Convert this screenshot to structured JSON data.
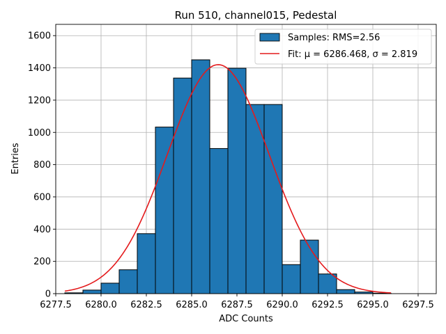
{
  "chart_data": {
    "type": "bar",
    "title": "Run 510, channel015, Pedestal",
    "xlabel": "ADC Counts",
    "ylabel": "Entries",
    "xlim": [
      6277.5,
      6298.5
    ],
    "ylim": [
      0,
      1670
    ],
    "xticks": [
      6277.5,
      6280.0,
      6282.5,
      6285.0,
      6287.5,
      6290.0,
      6292.5,
      6295.0,
      6297.5
    ],
    "xtick_labels": [
      "6277.5",
      "6280.0",
      "6282.5",
      "6285.0",
      "6287.5",
      "6290.0",
      "6292.5",
      "6295.0",
      "6297.5"
    ],
    "yticks": [
      0,
      200,
      400,
      600,
      800,
      1000,
      1200,
      1400,
      1600
    ],
    "ytick_labels": [
      "0",
      "200",
      "400",
      "600",
      "800",
      "1000",
      "1200",
      "1400",
      "1600"
    ],
    "grid": true,
    "legend_position": "top-right",
    "series": [
      {
        "name": "Samples: RMS=2.56",
        "kind": "histogram",
        "color": "#1f77b4",
        "edge_color": "#000000",
        "bin_width": 1,
        "x": [
          6278,
          6279,
          6280,
          6281,
          6282,
          6283,
          6284,
          6285,
          6286,
          6287,
          6288,
          6289,
          6290,
          6291,
          6292,
          6293,
          6294,
          6295
        ],
        "values": [
          5,
          22,
          65,
          148,
          372,
          1033,
          1337,
          1450,
          900,
          1398,
          1173,
          1173,
          180,
          332,
          122,
          25,
          10,
          3
        ]
      },
      {
        "name": "Fit: μ = 6286.468, σ = 2.819",
        "kind": "gaussian-fit",
        "color": "#e41a1c",
        "mu": 6286.468,
        "sigma": 2.819,
        "amplitude": 1420,
        "x_range": [
          6278,
          6296
        ]
      }
    ]
  }
}
